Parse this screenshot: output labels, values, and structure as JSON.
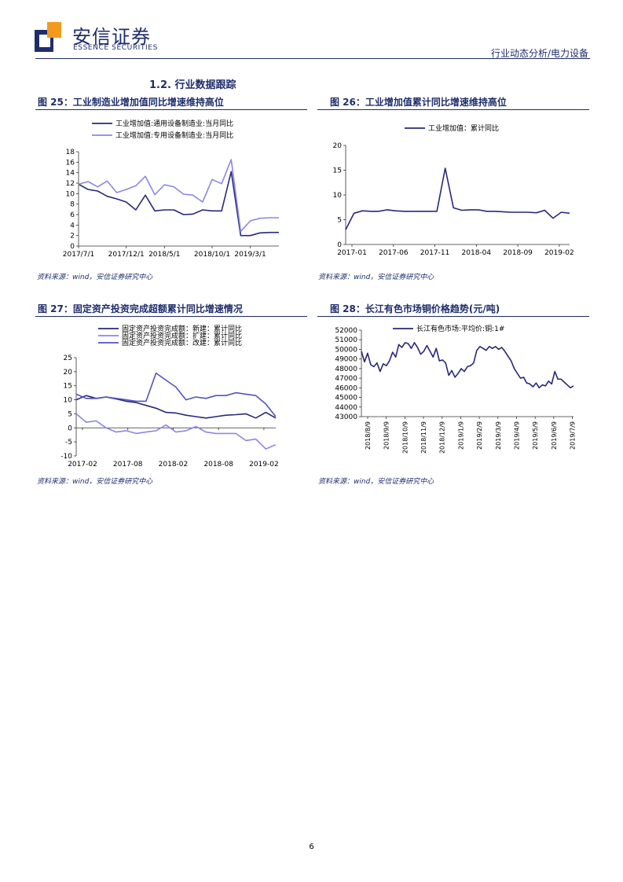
{
  "header": {
    "logo_cn": "安信证券",
    "logo_en": "ESSENCE SECURITIES",
    "right_text": "行业动态分析/电力设备"
  },
  "section_title": "1.2. 行业数据跟踪",
  "page_number": "6",
  "colors": {
    "navy": "#1f2d6b",
    "dark_series": "#27297a",
    "light_series": "#8b86e8",
    "mid_series": "#5451c4"
  },
  "figures": [
    {
      "title": "图 25：工业制造业增加值同比增速维持高位",
      "source": "资料来源：wind，安信证券研究中心"
    },
    {
      "title": "图 26：工业增加值累计同比增速维持高位",
      "source": "资料来源：wind，安信证券研究中心"
    },
    {
      "title": "图 27：固定资产投资完成超额累计同比增速情况",
      "source": "资料来源：wind，安信证券研究中心"
    },
    {
      "title": "图 28：长江有色市场铜价格趋势(元/吨)",
      "source": "资料来源：wind，安信证券研究中心"
    }
  ],
  "chart_data": [
    {
      "id": "fig25",
      "type": "line",
      "title": "工业制造业增加值同比增速维持高位",
      "x": [
        "2017/7/1",
        "2017/8/1",
        "2017/9/1",
        "2017/10/1",
        "2017/11/1",
        "2017/12/1",
        "2018/1/1",
        "2018/3/1",
        "2018/4/1",
        "2018/5/1",
        "2018/6/1",
        "2018/7/1",
        "2018/8/1",
        "2018/9/1",
        "2018/10/1",
        "2018/11/1",
        "2018/12/1",
        "2019/1/1",
        "2019/3/1",
        "2019/4/1",
        "2019/5/1",
        "2019/6/1"
      ],
      "xticks": [
        "2017/7/1",
        "2017/12/1",
        "2018/5/1",
        "2018/10/1",
        "2019/3/1"
      ],
      "xtick_idx": [
        0,
        5,
        9,
        14,
        18
      ],
      "ylim": [
        0,
        18
      ],
      "yticks": [
        0,
        2,
        4,
        6,
        8,
        10,
        12,
        14,
        16,
        18
      ],
      "series": [
        {
          "name": "工业增加值:通用设备制造业:当月同比",
          "color": "#27297a",
          "values": [
            11.8,
            10.8,
            10.5,
            9.5,
            9.0,
            8.4,
            6.9,
            9.7,
            6.7,
            6.9,
            6.9,
            6.0,
            6.1,
            6.9,
            6.7,
            6.7,
            14.2,
            2.0,
            2.0,
            2.5,
            2.6,
            2.6
          ]
        },
        {
          "name": "工业增加值:专用设备制造业:当月同比",
          "color": "#8b86e8",
          "values": [
            11.8,
            12.3,
            11.3,
            12.4,
            10.2,
            10.8,
            11.5,
            13.3,
            9.8,
            11.7,
            11.3,
            9.9,
            9.7,
            8.4,
            12.7,
            11.9,
            16.5,
            2.8,
            4.8,
            5.3,
            5.4,
            5.4
          ]
        }
      ]
    },
    {
      "id": "fig26",
      "type": "line",
      "title": "工业增加值累计同比增速维持高位",
      "xticks": [
        "2017-01",
        "2017-06",
        "2017-11",
        "2018-04",
        "2018-09",
        "2019-02"
      ],
      "ylim": [
        0,
        20
      ],
      "yticks": [
        0,
        5,
        10,
        15,
        20
      ],
      "series": [
        {
          "name": "工业增加值：累计同比",
          "color": "#27297a",
          "values": [
            3.0,
            6.3,
            6.8,
            6.7,
            6.7,
            7.0,
            6.8,
            6.7,
            6.7,
            6.7,
            6.7,
            6.7,
            15.4,
            7.4,
            6.9,
            7.0,
            7.0,
            6.7,
            6.7,
            6.6,
            6.5,
            6.5,
            6.5,
            6.4,
            6.9,
            5.3,
            6.5,
            6.3
          ]
        }
      ]
    },
    {
      "id": "fig27",
      "type": "line",
      "title": "固定资产投资完成超额累计同比增速情况",
      "xticks": [
        "2017-02",
        "2017-08",
        "2018-02",
        "2018-08",
        "2019-02"
      ],
      "ylim": [
        -10,
        25
      ],
      "yticks": [
        -10,
        -5,
        0,
        5,
        10,
        15,
        20,
        25
      ],
      "series": [
        {
          "name": "固定资产投资完成额：新建：累计同比",
          "color": "#27297a",
          "values": [
            10.0,
            11.5,
            10.5,
            11.0,
            10.3,
            9.5,
            9.0,
            8.0,
            7.0,
            5.5,
            5.3,
            4.5,
            4.0,
            3.5,
            4.0,
            4.5,
            4.7,
            5.0,
            3.5,
            5.5,
            3.5
          ]
        },
        {
          "name": "固定资产投资完成额：扩建：累计同比",
          "color": "#8b86e8",
          "values": [
            5.0,
            2.0,
            2.5,
            0.0,
            -1.5,
            -1.0,
            -2.0,
            -1.5,
            -1.0,
            1.0,
            -1.5,
            -1.0,
            0.5,
            -1.5,
            -2.0,
            -2.0,
            -2.0,
            -4.5,
            -4.0,
            -7.5,
            -6.0
          ]
        },
        {
          "name": "固定资产投资完成额：改建：累计同比",
          "color": "#5451c4",
          "values": [
            12.0,
            10.5,
            10.5,
            11.0,
            10.5,
            10.0,
            9.5,
            9.5,
            19.5,
            17.0,
            14.5,
            10.0,
            11.0,
            10.5,
            11.5,
            11.5,
            12.5,
            12.0,
            11.5,
            8.5,
            4.0
          ]
        }
      ]
    },
    {
      "id": "fig28",
      "type": "line",
      "title": "长江有色市场铜价格趋势(元/吨)",
      "xticks": [
        "2018/8/9",
        "2018/9/9",
        "2018/10/9",
        "2018/11/9",
        "2018/12/9",
        "2019/1/9",
        "2019/2/9",
        "2019/3/9",
        "2019/4/9",
        "2019/5/9",
        "2019/6/9",
        "2019/7/9"
      ],
      "ylim": [
        43000,
        52000
      ],
      "yticks": [
        43000,
        44000,
        45000,
        46000,
        47000,
        48000,
        49000,
        50000,
        51000,
        52000
      ],
      "series": [
        {
          "name": "长江有色市场:平均价:铜:1#",
          "color": "#27297a",
          "values": [
            49800,
            48700,
            49600,
            48400,
            48200,
            48600,
            47700,
            48500,
            48300,
            48800,
            49700,
            49200,
            50500,
            50200,
            50700,
            50600,
            50100,
            50700,
            50200,
            49500,
            49800,
            50400,
            49800,
            49200,
            50100,
            48800,
            48900,
            48600,
            47300,
            47800,
            47100,
            47500,
            48000,
            47700,
            48200,
            48300,
            48600,
            49900,
            50300,
            50100,
            49900,
            50300,
            50100,
            50300,
            50000,
            50200,
            49800,
            49300,
            48800,
            48000,
            47500,
            47000,
            47100,
            46500,
            46400,
            46100,
            46500,
            46000,
            46300,
            46200,
            46700,
            46400,
            47700,
            46900,
            46900,
            46600,
            46300,
            46000,
            46200
          ]
        }
      ]
    }
  ]
}
